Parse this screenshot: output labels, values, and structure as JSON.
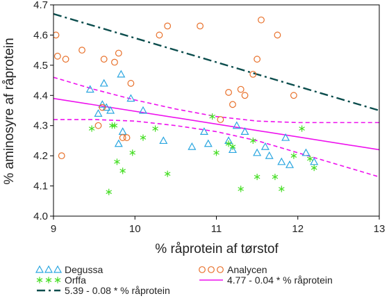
{
  "chart_data": {
    "type": "scatter",
    "xlabel": "% råprotein af tørstof",
    "ylabel": "% aminosyre af råprotein",
    "xlim": [
      9,
      13
    ],
    "ylim": [
      4.0,
      4.7
    ],
    "xticks": [
      9,
      10,
      11,
      12,
      13
    ],
    "xtick_labels": [
      "9",
      "10",
      "11",
      "12",
      "13"
    ],
    "yticks": [
      4.0,
      4.1,
      4.2,
      4.3,
      4.4,
      4.5,
      4.6,
      4.7
    ],
    "ytick_labels": [
      "4.0",
      "4.1",
      "4.2",
      "4.3",
      "4.4",
      "4.5",
      "4.6",
      "4.7"
    ],
    "grid": false,
    "legend_position": "bottom",
    "colors": {
      "degussa": "#2aa6e0",
      "analycen": "#e8702a",
      "orffa": "#44dd22",
      "fit_5_39": "#0b4d4d",
      "fit_4_77": "#ee10ee"
    },
    "series": [
      {
        "name": "Degussa",
        "kind": "points",
        "marker": "triangle",
        "x": [
          9.45,
          9.55,
          9.6,
          9.62,
          9.65,
          9.7,
          9.8,
          9.83,
          9.85,
          9.95,
          10.1,
          10.35,
          10.7,
          10.85,
          10.9,
          11.15,
          11.2,
          11.25,
          11.35,
          11.5,
          11.6,
          11.65,
          11.8,
          11.85,
          11.9,
          12.1,
          12.2
        ],
        "y": [
          4.42,
          4.34,
          4.37,
          4.44,
          4.36,
          4.35,
          4.24,
          4.47,
          4.28,
          4.39,
          4.35,
          4.25,
          4.23,
          4.28,
          4.24,
          4.25,
          4.22,
          4.3,
          4.28,
          4.21,
          4.23,
          4.2,
          4.18,
          4.26,
          4.17,
          4.21,
          4.18
        ]
      },
      {
        "name": "Analycen",
        "kind": "points",
        "marker": "circle",
        "x": [
          9.03,
          9.05,
          9.1,
          9.15,
          9.35,
          9.55,
          9.6,
          9.62,
          9.75,
          9.8,
          9.85,
          9.9,
          9.95,
          10.3,
          10.4,
          10.8,
          11.05,
          11.15,
          11.2,
          11.3,
          11.35,
          11.45,
          11.5,
          11.55,
          11.75,
          11.95
        ],
        "y": [
          4.6,
          4.53,
          4.2,
          4.52,
          4.55,
          4.3,
          4.36,
          4.52,
          4.51,
          4.54,
          4.26,
          4.26,
          4.44,
          4.6,
          4.63,
          4.63,
          4.32,
          4.41,
          4.37,
          4.42,
          4.4,
          4.47,
          4.52,
          4.65,
          4.6,
          4.4
        ]
      },
      {
        "name": "Orffa",
        "kind": "points",
        "marker": "star",
        "x": [
          9.47,
          9.68,
          9.72,
          9.75,
          9.78,
          9.85,
          9.97,
          10.1,
          10.25,
          10.4,
          10.95,
          11.0,
          11.15,
          11.2,
          11.3,
          11.45,
          11.5,
          11.72,
          11.8,
          11.95,
          12.05,
          12.15,
          12.2
        ],
        "y": [
          4.29,
          4.08,
          4.3,
          4.3,
          4.18,
          4.15,
          4.21,
          4.26,
          4.29,
          4.14,
          4.33,
          4.21,
          4.24,
          4.23,
          4.09,
          4.25,
          4.13,
          4.13,
          4.09,
          4.2,
          4.29,
          4.19,
          4.16
        ]
      },
      {
        "name": "5.39 - 0.08 * % råprotein",
        "kind": "line",
        "style": "dash-dot",
        "x": [
          9,
          13
        ],
        "y": [
          4.67,
          4.35
        ]
      },
      {
        "name": "4.77 - 0.04 * % råprotein",
        "kind": "line",
        "style": "solid",
        "x": [
          9,
          13
        ],
        "y": [
          4.39,
          4.22
        ]
      },
      {
        "kind": "line",
        "style": "dashed",
        "x": [
          9,
          9.5,
          10,
          10.5,
          11,
          11.5,
          12,
          12.5,
          13
        ],
        "y": [
          4.46,
          4.42,
          4.385,
          4.355,
          4.33,
          4.315,
          4.31,
          4.31,
          4.31
        ]
      },
      {
        "kind": "line",
        "style": "dashed",
        "x": [
          9,
          9.5,
          10,
          10.5,
          11,
          11.5,
          12,
          12.5,
          13
        ],
        "y": [
          4.32,
          4.32,
          4.315,
          4.3,
          4.28,
          4.25,
          4.21,
          4.17,
          4.13
        ]
      }
    ],
    "legend": [
      {
        "label": "Degussa",
        "marker": "triangle",
        "color_key": "degussa"
      },
      {
        "label": "Analycen",
        "marker": "circle",
        "color_key": "analycen"
      },
      {
        "label": "Orffa",
        "marker": "star",
        "color_key": "orffa"
      },
      {
        "label": "4.77 - 0.04 * % råprotein",
        "marker": "solid",
        "color_key": "fit_4_77"
      },
      {
        "label": "5.39 - 0.08 * % råprotein",
        "marker": "dash-dot",
        "color_key": "fit_5_39"
      }
    ]
  }
}
